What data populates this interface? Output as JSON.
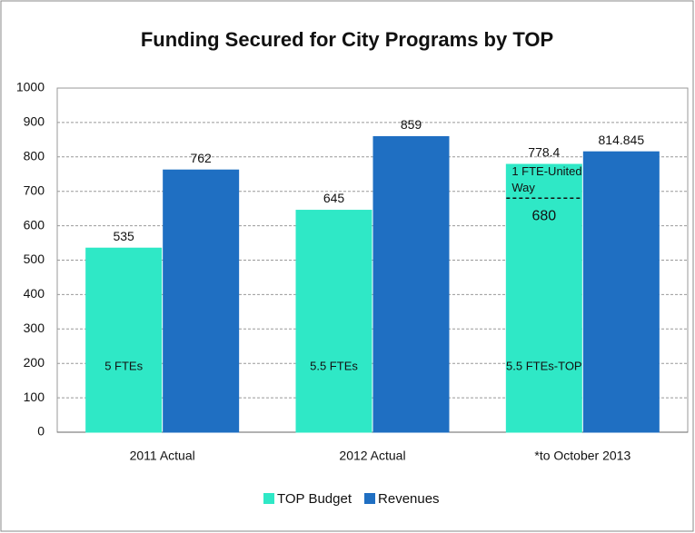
{
  "chart_data": {
    "type": "bar",
    "title": "Funding Secured for City Programs by TOP",
    "categories": [
      "2011 Actual",
      "2012 Actual",
      "*to October 2013"
    ],
    "series": [
      {
        "name": "TOP Budget",
        "color": "#2fe8c6",
        "values": [
          535,
          645,
          778.4
        ],
        "inner_labels": [
          "5 FTEs",
          "5.5 FTEs",
          "5.5 FTEs-TOP"
        ],
        "split_values": [
          null,
          null,
          680
        ],
        "split_labels": [
          null,
          null,
          "1 FTE-United Way"
        ]
      },
      {
        "name": "Revenues",
        "color": "#1f6fc2",
        "values": [
          762,
          859,
          814.845
        ]
      }
    ],
    "ylim": [
      0,
      1000
    ],
    "yticks": [
      0,
      100,
      200,
      300,
      400,
      500,
      600,
      700,
      800,
      900,
      1000
    ],
    "grid": true,
    "legend": "bottom"
  }
}
